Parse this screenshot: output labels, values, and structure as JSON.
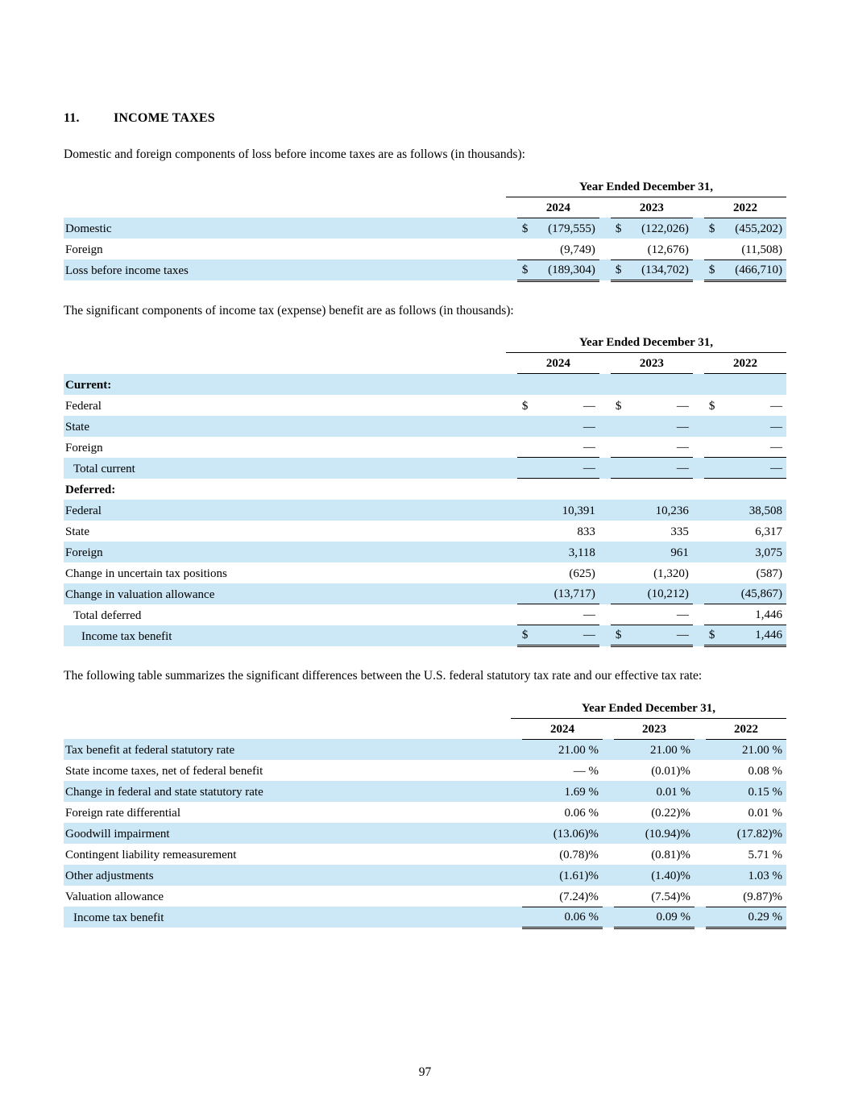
{
  "colors": {
    "row_highlight": "#cce7f5"
  },
  "section": {
    "number": "11.",
    "title": "INCOME TAXES"
  },
  "paragraphs": [
    "Domestic and foreign components of loss before income taxes are as follows (in thousands):",
    "The significant components of income tax (expense) benefit are as follows (in thousands):",
    "The following table summarizes the significant differences between the U.S. federal statutory tax rate and our effective tax rate:"
  ],
  "page_number": "97",
  "tables": [
    {
      "name": "loss-before-income-taxes-table",
      "span_header": "Year Ended December 31,",
      "years": [
        "2024",
        "2023",
        "2022"
      ],
      "has_dollar_columns": true,
      "currency_symbol": "$",
      "rows": [
        {
          "label": "Domestic",
          "shaded": true,
          "dollar": true,
          "values": [
            "(179,555)",
            "(122,026)",
            "(455,202)"
          ]
        },
        {
          "label": "Foreign",
          "shaded": false,
          "values": [
            "(9,749)",
            "(12,676)",
            "(11,508)"
          ],
          "line_below": true
        },
        {
          "label": "Loss before income taxes",
          "shaded": true,
          "dollar": true,
          "values": [
            "(189,304)",
            "(134,702)",
            "(466,710)"
          ],
          "double_below": true
        }
      ]
    },
    {
      "name": "income-tax-expense-benefit-components-table",
      "span_header": "Year Ended December 31,",
      "years": [
        "2024",
        "2023",
        "2022"
      ],
      "has_dollar_columns": true,
      "currency_symbol": "$",
      "rows": [
        {
          "label": "Current:",
          "bold": true,
          "shaded": true,
          "values": [
            "",
            "",
            ""
          ]
        },
        {
          "label": "Federal",
          "shaded": false,
          "dollar": true,
          "values": [
            "—",
            "—",
            "—"
          ]
        },
        {
          "label": "State",
          "shaded": true,
          "values": [
            "—",
            "—",
            "—"
          ]
        },
        {
          "label": "Foreign",
          "shaded": false,
          "values": [
            "—",
            "—",
            "—"
          ],
          "line_below": true
        },
        {
          "label": "Total current",
          "indent": 1,
          "shaded": true,
          "values": [
            "—",
            "—",
            "—"
          ],
          "line_below": true
        },
        {
          "label": "Deferred:",
          "bold": true,
          "shaded": false,
          "values": [
            "",
            "",
            ""
          ]
        },
        {
          "label": "Federal",
          "shaded": true,
          "values": [
            "10,391",
            "10,236",
            "38,508"
          ]
        },
        {
          "label": "State",
          "shaded": false,
          "values": [
            "833",
            "335",
            "6,317"
          ]
        },
        {
          "label": "Foreign",
          "shaded": true,
          "values": [
            "3,118",
            "961",
            "3,075"
          ]
        },
        {
          "label": "Change in uncertain tax positions",
          "shaded": false,
          "values": [
            "(625)",
            "(1,320)",
            "(587)"
          ]
        },
        {
          "label": "Change in valuation allowance",
          "shaded": true,
          "values": [
            "(13,717)",
            "(10,212)",
            "(45,867)"
          ],
          "line_below": true
        },
        {
          "label": "Total deferred",
          "indent": 1,
          "shaded": false,
          "values": [
            "—",
            "—",
            "1,446"
          ],
          "line_below": true
        },
        {
          "label": "Income tax benefit",
          "indent": 2,
          "shaded": true,
          "dollar": true,
          "values": [
            "—",
            "—",
            "1,446"
          ],
          "double_below": true
        }
      ]
    },
    {
      "name": "effective-tax-rate-reconciliation-table",
      "span_header": "Year Ended December 31,",
      "years": [
        "2024",
        "2023",
        "2022"
      ],
      "has_dollar_columns": false,
      "rows": [
        {
          "label": "Tax benefit at federal statutory rate",
          "shaded": true,
          "values": [
            "21.00 %",
            "21.00 %",
            "21.00 %"
          ]
        },
        {
          "label": "State income taxes, net of federal benefit",
          "shaded": false,
          "values": [
            "— %",
            "(0.01)%",
            "0.08 %"
          ]
        },
        {
          "label": "Change in federal and state statutory rate",
          "shaded": true,
          "values": [
            "1.69 %",
            "0.01 %",
            "0.15 %"
          ]
        },
        {
          "label": "Foreign rate differential",
          "shaded": false,
          "values": [
            "0.06 %",
            "(0.22)%",
            "0.01 %"
          ]
        },
        {
          "label": "Goodwill impairment",
          "shaded": true,
          "values": [
            "(13.06)%",
            "(10.94)%",
            "(17.82)%"
          ]
        },
        {
          "label": "Contingent liability remeasurement",
          "shaded": false,
          "values": [
            "(0.78)%",
            "(0.81)%",
            "5.71 %"
          ]
        },
        {
          "label": "Other adjustments",
          "shaded": true,
          "values": [
            "(1.61)%",
            "(1.40)%",
            "1.03 %"
          ]
        },
        {
          "label": "Valuation allowance",
          "shaded": false,
          "values": [
            "(7.24)%",
            "(7.54)%",
            "(9.87)%"
          ],
          "line_below": true
        },
        {
          "label": "Income tax benefit",
          "indent": 1,
          "shaded": true,
          "values": [
            "0.06 %",
            "0.09 %",
            "0.29 %"
          ],
          "double_below": true
        }
      ]
    }
  ]
}
